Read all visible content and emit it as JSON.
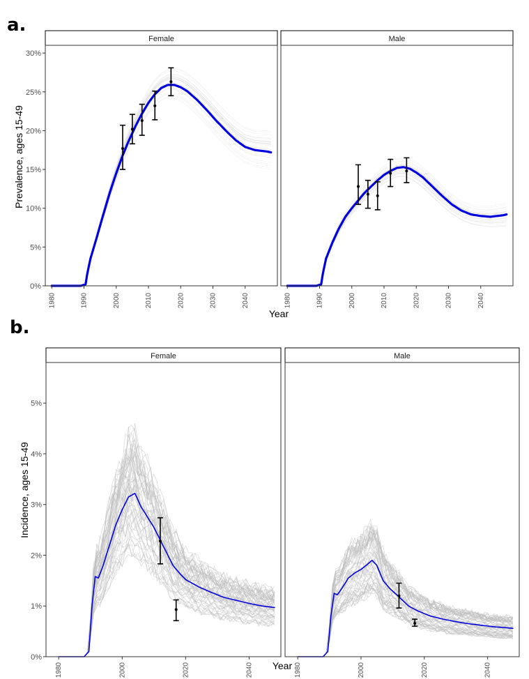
{
  "colors": {
    "main_line": "#0000dd",
    "draws": "#bdbdbd",
    "error_bars": "#000000"
  },
  "chart_data": [
    {
      "panel_label": "a.",
      "type": "line",
      "xlabel": "Year",
      "ylabel": "Prevalence, ages 15-49",
      "ylim": [
        0,
        31
      ],
      "xlim": [
        1978,
        2050
      ],
      "y_ticks": [
        0,
        5,
        10,
        15,
        20,
        25,
        30
      ],
      "y_tick_labels": [
        "0%",
        "5%",
        "10%",
        "15%",
        "20%",
        "25%",
        "30%"
      ],
      "x_ticks": [
        1980,
        1990,
        2000,
        2010,
        2020,
        2030,
        2040
      ],
      "x_tick_labels": [
        "1980",
        "1990",
        "2000",
        "2010",
        "2020",
        "2030",
        "2040"
      ],
      "facets": [
        {
          "name": "Female",
          "main_series": {
            "x": [
              1980,
              1989,
              1990.5,
              1991,
              1992,
              1994,
              1996,
              1998,
              2000,
              2002,
              2004,
              2006,
              2008,
              2010,
              2012,
              2014,
              2016,
              2018,
              2020,
              2022,
              2025,
              2028,
              2031,
              2034,
              2037,
              2040,
              2043,
              2045,
              2047,
              2048
            ],
            "y": [
              0,
              0,
              0.2,
              1.5,
              3.5,
              6.3,
              9.2,
              12.0,
              14.5,
              16.8,
              18.8,
              20.6,
              22.2,
              23.6,
              24.7,
              25.5,
              25.9,
              25.9,
              25.6,
              25.1,
              24.0,
              22.7,
              21.3,
              20.0,
              18.8,
              17.9,
              17.5,
              17.4,
              17.3,
              17.2
            ]
          },
          "observations": [
            {
              "x": 2002,
              "y": 17.7,
              "lo": 15.0,
              "hi": 20.7
            },
            {
              "x": 2005,
              "y": 20.2,
              "lo": 18.3,
              "hi": 22.1
            },
            {
              "x": 2008,
              "y": 21.3,
              "lo": 19.4,
              "hi": 23.4
            },
            {
              "x": 2012,
              "y": 23.2,
              "lo": 21.4,
              "hi": 25.1
            },
            {
              "x": 2017,
              "y": 26.3,
              "lo": 24.5,
              "hi": 28.1
            }
          ]
        },
        {
          "name": "Male",
          "main_series": {
            "x": [
              1980,
              1989,
              1990.5,
              1991,
              1992,
              1994,
              1996,
              1998,
              2000,
              2002,
              2004,
              2006,
              2008,
              2010,
              2012,
              2014,
              2016,
              2018,
              2020,
              2022,
              2025,
              2028,
              2031,
              2034,
              2037,
              2040,
              2043,
              2045,
              2047,
              2048
            ],
            "y": [
              0,
              0,
              0.2,
              1.5,
              3.5,
              5.6,
              7.4,
              8.9,
              10.0,
              11.0,
              12.0,
              12.8,
              13.6,
              14.3,
              14.8,
              15.2,
              15.3,
              15.1,
              14.6,
              14.0,
              12.8,
              11.6,
              10.5,
              9.7,
              9.2,
              9.0,
              8.9,
              9.0,
              9.1,
              9.2
            ]
          },
          "observations": [
            {
              "x": 2002,
              "y": 12.8,
              "lo": 10.5,
              "hi": 15.6
            },
            {
              "x": 2005,
              "y": 11.8,
              "lo": 10.0,
              "hi": 13.6
            },
            {
              "x": 2008,
              "y": 11.6,
              "lo": 9.8,
              "hi": 13.4
            },
            {
              "x": 2012,
              "y": 14.5,
              "lo": 12.8,
              "hi": 16.3
            },
            {
              "x": 2017,
              "y": 14.8,
              "lo": 13.3,
              "hi": 16.5
            }
          ]
        }
      ]
    },
    {
      "panel_label": "b.",
      "type": "line",
      "xlabel": "Year",
      "ylabel": "Incidence, ages 15-49",
      "ylim": [
        0,
        5.8
      ],
      "xlim": [
        1976,
        2050
      ],
      "y_ticks": [
        0,
        1,
        2,
        3,
        4,
        5
      ],
      "y_tick_labels": [
        "0%",
        "1%",
        "2%",
        "3%",
        "4%",
        "5%"
      ],
      "x_ticks": [
        1980,
        2000,
        2020,
        2040
      ],
      "x_tick_labels": [
        "1980",
        "2000",
        "2020",
        "2040"
      ],
      "facets": [
        {
          "name": "Female",
          "main_series": {
            "x": [
              1980,
              1988,
              1989.5,
              1990.5,
              1991.5,
              1992.5,
              1994,
              1996,
              1998,
              2000,
              2002,
              2004,
              2006,
              2008,
              2010,
              2012,
              2014,
              2016,
              2018,
              2020,
              2024,
              2028,
              2032,
              2036,
              2040,
              2044,
              2048
            ],
            "y": [
              0,
              0,
              0.1,
              1.0,
              1.58,
              1.55,
              1.8,
              2.2,
              2.6,
              2.9,
              3.15,
              3.22,
              2.95,
              2.75,
              2.55,
              2.3,
              2.05,
              1.8,
              1.65,
              1.52,
              1.38,
              1.27,
              1.17,
              1.11,
              1.05,
              1.0,
              0.97
            ]
          },
          "observations": [
            {
              "x": 2012,
              "y": 2.28,
              "lo": 1.83,
              "hi": 2.74
            },
            {
              "x": 2017,
              "y": 0.93,
              "lo": 0.71,
              "hi": 1.12
            }
          ]
        },
        {
          "name": "Male",
          "main_series": {
            "x": [
              1980,
              1988,
              1989.5,
              1990.5,
              1991.5,
              1992.5,
              1994,
              1996,
              1998,
              2000,
              2002,
              2003.5,
              2005,
              2007,
              2009,
              2012,
              2015,
              2018,
              2022,
              2026,
              2030,
              2034,
              2038,
              2042,
              2046,
              2048
            ],
            "y": [
              0,
              0,
              0.1,
              0.8,
              1.25,
              1.22,
              1.35,
              1.55,
              1.65,
              1.72,
              1.82,
              1.9,
              1.8,
              1.5,
              1.35,
              1.18,
              1.0,
              0.9,
              0.8,
              0.74,
              0.69,
              0.65,
              0.62,
              0.59,
              0.57,
              0.56
            ]
          },
          "observations": [
            {
              "x": 2012,
              "y": 1.2,
              "lo": 0.96,
              "hi": 1.45
            },
            {
              "x": 2017,
              "y": 0.66,
              "lo": 0.6,
              "hi": 0.74
            }
          ]
        }
      ]
    }
  ]
}
